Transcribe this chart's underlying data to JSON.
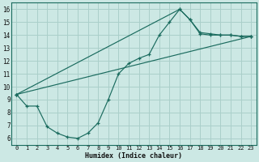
{
  "xlabel": "Humidex (Indice chaleur)",
  "bg_color": "#cce8e4",
  "grid_color": "#aacfca",
  "line_color": "#1a6b5e",
  "xlim": [
    -0.5,
    23.5
  ],
  "ylim": [
    5.5,
    16.5
  ],
  "xticks": [
    0,
    1,
    2,
    3,
    4,
    5,
    6,
    7,
    8,
    9,
    10,
    11,
    12,
    13,
    14,
    15,
    16,
    17,
    18,
    19,
    20,
    21,
    22,
    23
  ],
  "yticks": [
    6,
    7,
    8,
    9,
    10,
    11,
    12,
    13,
    14,
    15,
    16
  ],
  "line1_x": [
    0,
    1,
    2,
    3,
    4,
    5,
    6,
    7,
    8,
    9,
    10,
    11,
    12,
    13,
    14,
    15,
    16,
    17,
    18,
    19,
    20,
    21,
    22,
    23
  ],
  "line1_y": [
    9.4,
    8.5,
    8.5,
    6.9,
    6.4,
    6.1,
    6.0,
    6.4,
    7.2,
    9.0,
    11.0,
    11.8,
    12.2,
    12.5,
    14.0,
    15.0,
    16.0,
    15.2,
    14.1,
    14.0,
    14.0,
    14.0,
    13.9,
    13.9
  ],
  "line2_x": [
    0,
    16,
    17,
    18,
    19,
    20,
    21,
    22,
    23
  ],
  "line2_y": [
    9.4,
    16.0,
    15.2,
    14.2,
    14.1,
    14.0,
    14.0,
    13.9,
    13.9
  ],
  "line3_x": [
    0,
    23
  ],
  "line3_y": [
    9.4,
    13.9
  ]
}
